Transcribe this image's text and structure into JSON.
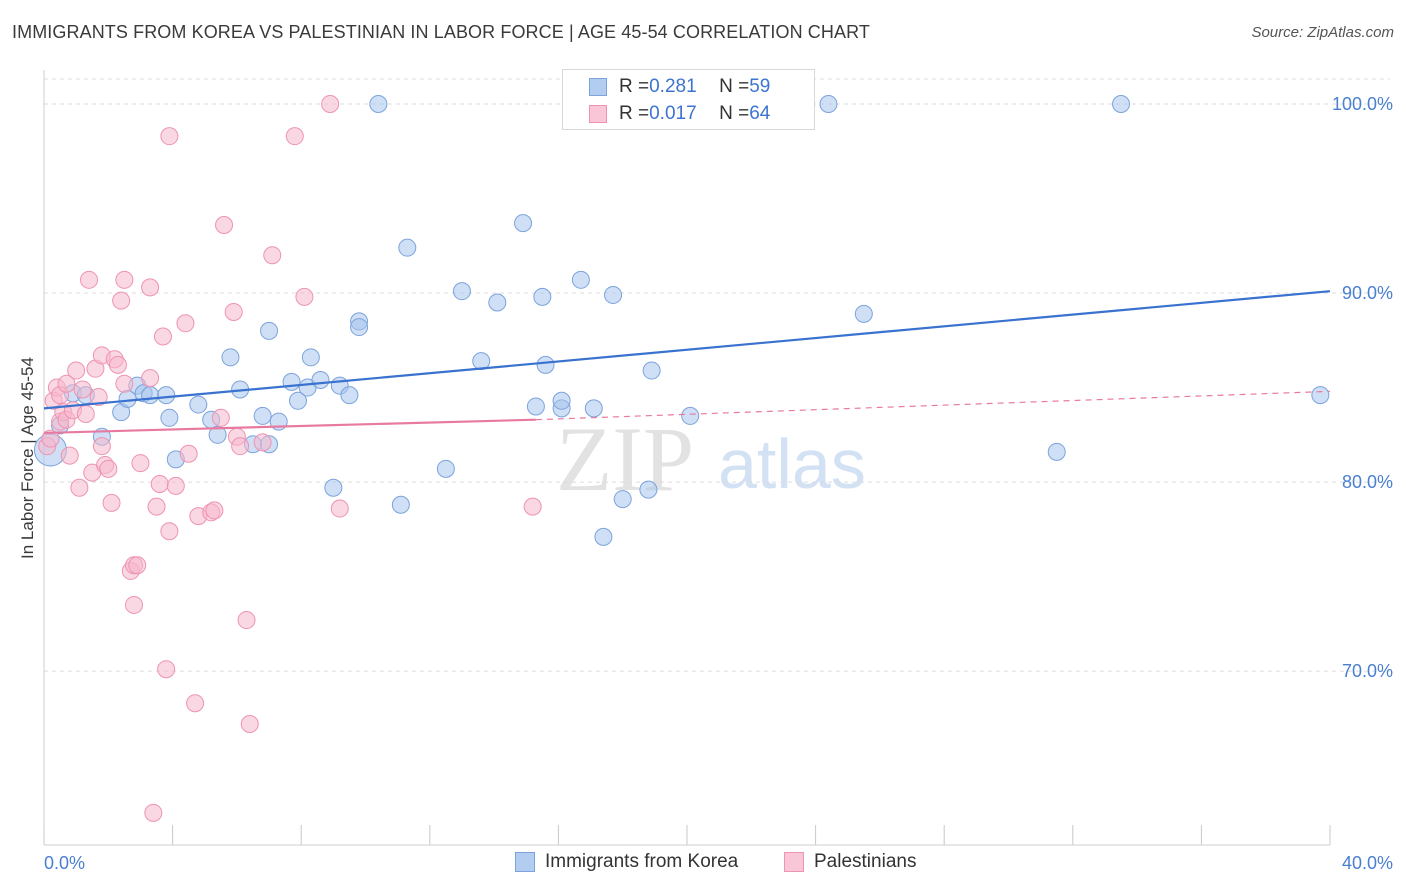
{
  "header": {
    "title": "IMMIGRANTS FROM KOREA VS PALESTINIAN IN LABOR FORCE | AGE 45-54 CORRELATION CHART",
    "source": "Source: ZipAtlas.com"
  },
  "watermark": {
    "zip": "ZIP",
    "atlas": "atlas"
  },
  "legend_box": [
    {
      "r_label": "R = ",
      "r_value": "0.281",
      "n_label": "N = ",
      "n_value": "59"
    },
    {
      "r_label": "R = ",
      "r_value": "0.017",
      "n_label": "N = ",
      "n_value": "64"
    }
  ],
  "chart_data": {
    "type": "scatter",
    "title": "IMMIGRANTS FROM KOREA VS PALESTINIAN IN LABOR FORCE | AGE 45-54 CORRELATION CHART",
    "xlabel": "",
    "ylabel": "In Labor Force | Age 45-54",
    "xlim": [
      0,
      40
    ],
    "ylim": [
      60.8,
      101.8
    ],
    "x_tick_labels": [
      "0.0%",
      "40.0%"
    ],
    "y_ticks": [
      70,
      80,
      90,
      100
    ],
    "y_tick_labels": [
      "70.0%",
      "80.0%",
      "90.0%",
      "100.0%"
    ],
    "grid": "horizontal dashed",
    "legend_position": "top-center and bottom",
    "series": [
      {
        "name": "Immigrants from Korea",
        "color": "#a8c4ec",
        "stroke": "#7ca3dc",
        "line_color": "#3a72d0",
        "trend": {
          "x": [
            0,
            40
          ],
          "y": [
            83.9,
            90.1
          ]
        },
        "points": [
          [
            0.2,
            81.7
          ],
          [
            0.5,
            83.0
          ],
          [
            0.9,
            84.7
          ],
          [
            1.3,
            84.6
          ],
          [
            1.8,
            82.4
          ],
          [
            2.4,
            83.7
          ],
          [
            2.6,
            84.4
          ],
          [
            2.9,
            85.1
          ],
          [
            3.1,
            84.7
          ],
          [
            3.3,
            84.6
          ],
          [
            3.8,
            84.6
          ],
          [
            3.9,
            83.4
          ],
          [
            4.1,
            81.2
          ],
          [
            4.8,
            84.1
          ],
          [
            5.2,
            83.3
          ],
          [
            5.4,
            82.5
          ],
          [
            5.8,
            86.6
          ],
          [
            6.1,
            84.9
          ],
          [
            6.5,
            82.0
          ],
          [
            6.8,
            83.5
          ],
          [
            7.0,
            82.0
          ],
          [
            7.3,
            83.2
          ],
          [
            7.0,
            88.0
          ],
          [
            7.7,
            85.3
          ],
          [
            7.9,
            84.3
          ],
          [
            8.2,
            85.0
          ],
          [
            8.3,
            86.6
          ],
          [
            8.6,
            85.4
          ],
          [
            9.0,
            79.7
          ],
          [
            9.2,
            85.1
          ],
          [
            9.5,
            84.6
          ],
          [
            9.8,
            88.5
          ],
          [
            9.8,
            88.2
          ],
          [
            10.4,
            100.0
          ],
          [
            11.1,
            78.8
          ],
          [
            11.3,
            92.4
          ],
          [
            12.5,
            80.7
          ],
          [
            13.0,
            90.1
          ],
          [
            13.6,
            86.4
          ],
          [
            14.1,
            89.5
          ],
          [
            14.9,
            93.7
          ],
          [
            15.3,
            84.0
          ],
          [
            15.5,
            89.8
          ],
          [
            15.6,
            86.2
          ],
          [
            16.1,
            83.9
          ],
          [
            16.1,
            84.3
          ],
          [
            16.7,
            90.7
          ],
          [
            17.1,
            83.9
          ],
          [
            17.4,
            77.1
          ],
          [
            17.7,
            89.9
          ],
          [
            18.0,
            79.1
          ],
          [
            18.8,
            79.6
          ],
          [
            18.9,
            85.9
          ],
          [
            20.1,
            83.5
          ],
          [
            24.4,
            100.0
          ],
          [
            25.5,
            88.9
          ],
          [
            31.5,
            81.6
          ],
          [
            33.5,
            100.0
          ],
          [
            39.7,
            84.6
          ]
        ]
      },
      {
        "name": "Palestinians",
        "color": "#f5b8cc",
        "stroke": "#ee93b1",
        "line_color": "#e87aa0",
        "trend": {
          "x": [
            0,
            15.3
          ],
          "y": [
            82.6,
            83.3
          ]
        },
        "trend_extension": {
          "x": [
            15.3,
            40
          ],
          "y": [
            83.3,
            84.8
          ]
        },
        "points": [
          [
            0.1,
            81.9
          ],
          [
            0.2,
            82.3
          ],
          [
            0.3,
            84.3
          ],
          [
            0.4,
            85.0
          ],
          [
            0.5,
            84.6
          ],
          [
            0.5,
            83.2
          ],
          [
            0.6,
            83.7
          ],
          [
            0.7,
            85.2
          ],
          [
            0.7,
            83.3
          ],
          [
            0.8,
            81.4
          ],
          [
            0.9,
            83.8
          ],
          [
            1.0,
            85.9
          ],
          [
            1.1,
            79.7
          ],
          [
            1.2,
            84.9
          ],
          [
            1.3,
            83.6
          ],
          [
            1.4,
            90.7
          ],
          [
            1.5,
            80.5
          ],
          [
            1.6,
            86.0
          ],
          [
            1.7,
            84.5
          ],
          [
            1.8,
            86.7
          ],
          [
            1.8,
            81.9
          ],
          [
            1.9,
            80.9
          ],
          [
            2.0,
            80.7
          ],
          [
            2.1,
            78.9
          ],
          [
            2.2,
            86.5
          ],
          [
            2.3,
            86.2
          ],
          [
            2.4,
            89.6
          ],
          [
            2.5,
            85.2
          ],
          [
            2.5,
            90.7
          ],
          [
            2.7,
            75.3
          ],
          [
            2.8,
            75.6
          ],
          [
            2.8,
            73.5
          ],
          [
            2.9,
            75.6
          ],
          [
            3.0,
            81.0
          ],
          [
            3.3,
            85.5
          ],
          [
            3.3,
            90.3
          ],
          [
            3.4,
            62.5
          ],
          [
            3.5,
            78.7
          ],
          [
            3.6,
            79.9
          ],
          [
            3.7,
            87.7
          ],
          [
            3.8,
            70.1
          ],
          [
            3.9,
            98.3
          ],
          [
            3.9,
            77.4
          ],
          [
            4.1,
            79.8
          ],
          [
            4.4,
            88.4
          ],
          [
            4.5,
            81.5
          ],
          [
            4.7,
            68.3
          ],
          [
            4.8,
            78.2
          ],
          [
            5.2,
            78.4
          ],
          [
            5.3,
            78.5
          ],
          [
            5.5,
            83.4
          ],
          [
            5.6,
            93.6
          ],
          [
            5.9,
            89.0
          ],
          [
            6.0,
            82.4
          ],
          [
            6.1,
            81.9
          ],
          [
            6.3,
            72.7
          ],
          [
            6.4,
            67.2
          ],
          [
            6.8,
            82.1
          ],
          [
            7.1,
            92.0
          ],
          [
            7.8,
            98.3
          ],
          [
            8.1,
            89.8
          ],
          [
            8.9,
            100.0
          ],
          [
            9.2,
            78.6
          ],
          [
            15.2,
            78.7
          ]
        ]
      }
    ]
  }
}
